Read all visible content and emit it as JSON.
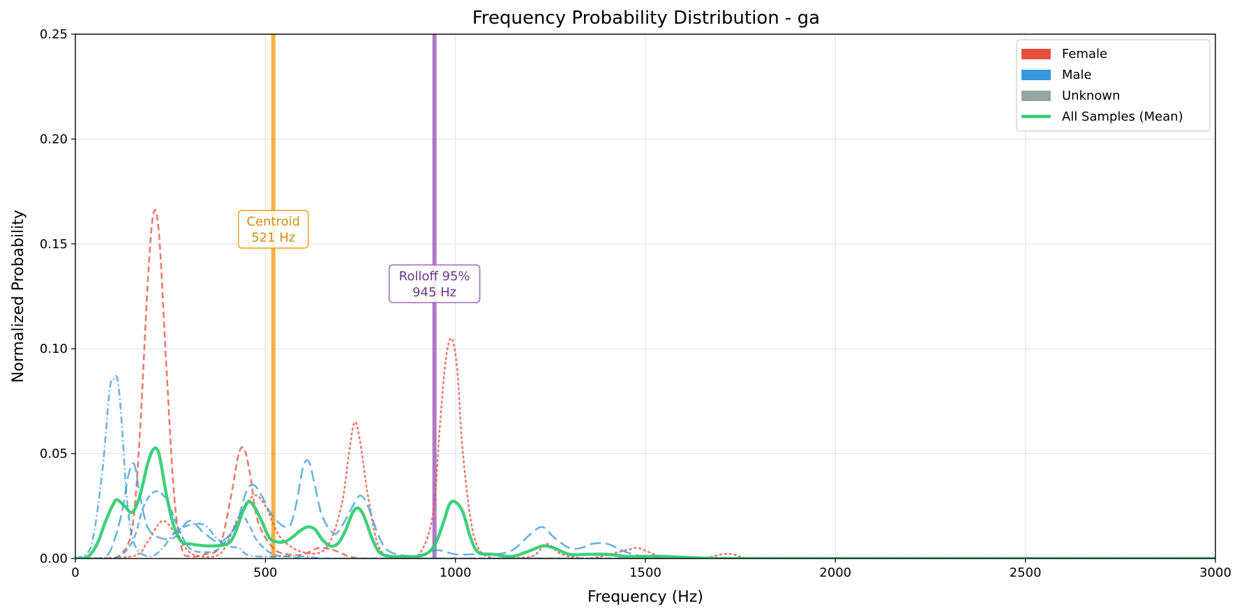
{
  "chart_data": {
    "type": "line",
    "title": "Frequency Probability Distribution - ga",
    "xlabel": "Frequency (Hz)",
    "ylabel": "Normalized Probability",
    "xlim": [
      0,
      3000
    ],
    "ylim": [
      0,
      0.25
    ],
    "xticks": [
      0,
      500,
      1000,
      1500,
      2000,
      2500,
      3000
    ],
    "xtick_labels": [
      "0",
      "500",
      "1000",
      "1500",
      "2000",
      "2500",
      "3000"
    ],
    "yticks": [
      0,
      0.05,
      0.1,
      0.15,
      0.2,
      0.25
    ],
    "ytick_labels": [
      "0.00",
      "0.05",
      "0.10",
      "0.15",
      "0.20",
      "0.25"
    ],
    "grid": true,
    "legend_position": "top-right",
    "legend": [
      {
        "label": "Female",
        "kind": "patch",
        "color": "#e74c3c"
      },
      {
        "label": "Male",
        "kind": "patch",
        "color": "#3498db"
      },
      {
        "label": "Unknown",
        "kind": "patch",
        "color": "#95a5a6"
      },
      {
        "label": "All Samples (Mean)",
        "kind": "line",
        "color": "#2ecc71"
      }
    ],
    "markers": [
      {
        "x": 521,
        "label_line1": "Centroid",
        "label_line2": "521 Hz",
        "y_label": 0.157,
        "color": "#f39c12",
        "text_color": "#d68910"
      },
      {
        "x": 945,
        "label_line1": "Rolloff 95%",
        "label_line2": "945 Hz",
        "y_label": 0.131,
        "color": "#9b59b6",
        "text_color": "#6c3483"
      }
    ],
    "series": [
      {
        "group": "Female",
        "style": "dashed",
        "color": "#e74c3c",
        "x": [
          0,
          80,
          120,
          150,
          170,
          190,
          205,
          220,
          240,
          260,
          280,
          300,
          340,
          380,
          410,
          430,
          445,
          460,
          480,
          520,
          560,
          600,
          640,
          680,
          720,
          760,
          800,
          900,
          1000,
          1100,
          1200,
          1300,
          1400,
          1500,
          2000,
          3000
        ],
        "y": [
          0,
          0,
          0.002,
          0.015,
          0.06,
          0.13,
          0.164,
          0.155,
          0.09,
          0.03,
          0.005,
          0.001,
          0.002,
          0.006,
          0.03,
          0.05,
          0.052,
          0.04,
          0.018,
          0.005,
          0.002,
          0.002,
          0.005,
          0.004,
          0.001,
          0,
          0,
          0,
          0,
          0,
          0,
          0,
          0,
          0,
          0,
          0
        ]
      },
      {
        "group": "Female",
        "style": "dotted",
        "color": "#e74c3c",
        "x": [
          0,
          150,
          190,
          230,
          270,
          310,
          380,
          430,
          470,
          500,
          540,
          600,
          660,
          700,
          720,
          735,
          750,
          770,
          800,
          850,
          900,
          940,
          960,
          975,
          990,
          1005,
          1020,
          1050,
          1100,
          1200,
          1240,
          1280,
          1350,
          1450,
          1480,
          1510,
          1560,
          1650,
          1700,
          1730,
          1770,
          1850,
          2000,
          3000
        ],
        "y": [
          0,
          0.001,
          0.008,
          0.018,
          0.01,
          0.002,
          0.002,
          0.02,
          0.03,
          0.025,
          0.01,
          0.003,
          0.005,
          0.025,
          0.05,
          0.065,
          0.055,
          0.03,
          0.005,
          0,
          0.001,
          0.02,
          0.065,
          0.095,
          0.105,
          0.09,
          0.05,
          0.01,
          0,
          0.001,
          0.007,
          0.002,
          0,
          0.004,
          0.005,
          0.003,
          0,
          0,
          0.002,
          0.002,
          0,
          0,
          0,
          0
        ]
      },
      {
        "group": "Male",
        "style": "dashdot",
        "color": "#3498db",
        "x": [
          0,
          40,
          70,
          90,
          100,
          110,
          120,
          135,
          150,
          170,
          200,
          230,
          260,
          300,
          340,
          370,
          400,
          430,
          450,
          480,
          520,
          560,
          600,
          650,
          700,
          800,
          1000,
          1200,
          1500,
          2000,
          3000
        ],
        "y": [
          0,
          0.005,
          0.04,
          0.08,
          0.085,
          0.086,
          0.07,
          0.03,
          0.01,
          0.003,
          0.001,
          0.005,
          0.012,
          0.016,
          0.016,
          0.01,
          0.006,
          0.005,
          0.002,
          0.001,
          0.001,
          0.001,
          0.001,
          0,
          0,
          0,
          0,
          0,
          0,
          0,
          0
        ]
      },
      {
        "group": "Male",
        "style": "longdash",
        "color": "#3498db",
        "x": [
          0,
          60,
          90,
          120,
          140,
          155,
          170,
          190,
          220,
          260,
          300,
          340,
          380,
          420,
          450,
          470,
          490,
          520,
          560,
          580,
          600,
          615,
          630,
          650,
          680,
          700,
          730,
          750,
          770,
          800,
          830,
          900,
          950,
          1000,
          1050,
          1100,
          1150,
          1200,
          1230,
          1260,
          1300,
          1330,
          1360,
          1400,
          1450,
          1500,
          1600,
          2000,
          3000
        ],
        "y": [
          0,
          0,
          0.003,
          0.02,
          0.04,
          0.045,
          0.03,
          0.015,
          0.01,
          0.01,
          0.018,
          0.012,
          0.008,
          0.015,
          0.032,
          0.035,
          0.03,
          0.02,
          0.015,
          0.025,
          0.044,
          0.046,
          0.035,
          0.02,
          0.012,
          0.015,
          0.025,
          0.03,
          0.025,
          0.01,
          0.003,
          0.001,
          0.004,
          0.002,
          0.002,
          0.002,
          0.004,
          0.012,
          0.015,
          0.01,
          0.005,
          0.005,
          0.007,
          0.007,
          0.003,
          0.001,
          0,
          0,
          0
        ]
      },
      {
        "group": "Male",
        "style": "dashed",
        "color": "#3498db",
        "x": [
          0,
          100,
          150,
          180,
          210,
          240,
          270,
          300,
          340,
          380,
          420,
          440,
          460,
          480,
          520,
          560,
          600,
          700,
          800,
          1000,
          1500,
          3000
        ],
        "y": [
          0,
          0,
          0.008,
          0.025,
          0.032,
          0.028,
          0.015,
          0.005,
          0.003,
          0.005,
          0.015,
          0.02,
          0.015,
          0.008,
          0.002,
          0.001,
          0,
          0,
          0,
          0,
          0,
          0
        ]
      },
      {
        "group": "All Samples (Mean)",
        "style": "solid",
        "color": "#2ecc71",
        "x": [
          0,
          20,
          40,
          60,
          80,
          100,
          110,
          130,
          150,
          170,
          190,
          205,
          220,
          240,
          260,
          280,
          300,
          350,
          400,
          420,
          440,
          455,
          470,
          490,
          510,
          530,
          550,
          570,
          590,
          610,
          630,
          650,
          670,
          690,
          710,
          730,
          745,
          760,
          780,
          800,
          830,
          870,
          900,
          930,
          950,
          970,
          985,
          1000,
          1020,
          1040,
          1060,
          1100,
          1150,
          1200,
          1230,
          1260,
          1300,
          1350,
          1400,
          1450,
          1500,
          1550,
          1700,
          2000,
          2500,
          3000
        ],
        "y": [
          0,
          0,
          0.002,
          0.008,
          0.018,
          0.026,
          0.028,
          0.025,
          0.022,
          0.03,
          0.045,
          0.052,
          0.05,
          0.03,
          0.015,
          0.008,
          0.007,
          0.006,
          0.007,
          0.012,
          0.022,
          0.027,
          0.025,
          0.018,
          0.01,
          0.008,
          0.008,
          0.01,
          0.013,
          0.015,
          0.014,
          0.009,
          0.006,
          0.007,
          0.013,
          0.022,
          0.024,
          0.02,
          0.01,
          0.003,
          0.001,
          0.001,
          0.001,
          0.003,
          0.008,
          0.018,
          0.026,
          0.027,
          0.022,
          0.01,
          0.003,
          0.002,
          0.001,
          0.004,
          0.006,
          0.005,
          0.002,
          0.002,
          0.002,
          0.001,
          0.001,
          0.001,
          0,
          0,
          0,
          0
        ]
      }
    ]
  }
}
